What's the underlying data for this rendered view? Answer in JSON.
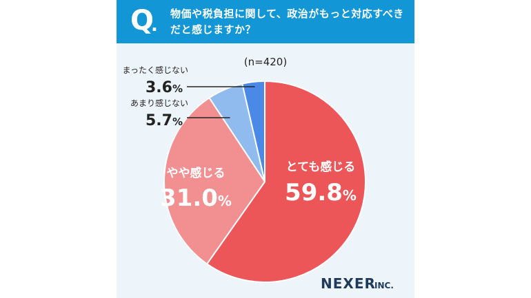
{
  "question": {
    "mark": "Q",
    "dot": ".",
    "text": "物価や税負担に関して、政治がもっと対応すべきだと感じますか？"
  },
  "chart_data": {
    "type": "pie",
    "sample_size": "(n=420)",
    "slices": [
      {
        "label": "とても感じる",
        "value": 59.8,
        "display": "59.8",
        "color": "#ec5658"
      },
      {
        "label": "やや感じる",
        "value": 31.0,
        "display": "31.0",
        "color": "#f29091"
      },
      {
        "label": "あまり感じない",
        "value": 5.7,
        "display": "5.7",
        "color": "#90bbee"
      },
      {
        "label": "まったく感じない",
        "value": 3.6,
        "display": "3.6",
        "color": "#4a8ae6"
      }
    ],
    "unit": "%"
  },
  "brand": {
    "name": "NEXER",
    "suffix": "INC."
  }
}
